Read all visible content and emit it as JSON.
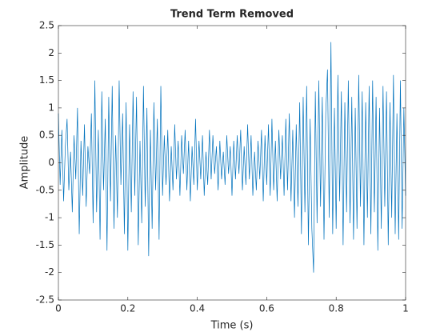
{
  "chart_data": {
    "type": "line",
    "title": "Trend Term Removed",
    "xlabel": "Time (s)",
    "ylabel": "Amplitude",
    "xlim": [
      0,
      1
    ],
    "xticks": [
      0,
      0.2,
      0.4,
      0.6,
      0.8,
      1
    ],
    "ylim": [
      -2.5,
      2.5
    ],
    "yticks": [
      -2.5,
      -2,
      -1.5,
      -1,
      -0.5,
      0,
      0.5,
      1,
      1.5,
      2,
      2.5
    ],
    "color": "#0072bd",
    "x": [
      0,
      0.005,
      0.01,
      0.015,
      0.02,
      0.025,
      0.03,
      0.035,
      0.04,
      0.045,
      0.05,
      0.055,
      0.06,
      0.065,
      0.07,
      0.075,
      0.08,
      0.085,
      0.09,
      0.095,
      0.1,
      0.105,
      0.11,
      0.115,
      0.12,
      0.125,
      0.13,
      0.135,
      0.14,
      0.145,
      0.15,
      0.155,
      0.16,
      0.165,
      0.17,
      0.175,
      0.18,
      0.185,
      0.19,
      0.195,
      0.2,
      0.205,
      0.21,
      0.215,
      0.22,
      0.225,
      0.23,
      0.235,
      0.24,
      0.245,
      0.25,
      0.255,
      0.26,
      0.265,
      0.27,
      0.275,
      0.28,
      0.285,
      0.29,
      0.295,
      0.3,
      0.305,
      0.31,
      0.315,
      0.32,
      0.325,
      0.33,
      0.335,
      0.34,
      0.345,
      0.35,
      0.355,
      0.36,
      0.365,
      0.37,
      0.375,
      0.38,
      0.385,
      0.39,
      0.395,
      0.4,
      0.405,
      0.41,
      0.415,
      0.42,
      0.425,
      0.43,
      0.435,
      0.44,
      0.445,
      0.45,
      0.455,
      0.46,
      0.465,
      0.47,
      0.475,
      0.48,
      0.485,
      0.49,
      0.495,
      0.5,
      0.505,
      0.51,
      0.515,
      0.52,
      0.525,
      0.53,
      0.535,
      0.54,
      0.545,
      0.55,
      0.555,
      0.56,
      0.565,
      0.57,
      0.575,
      0.58,
      0.585,
      0.59,
      0.595,
      0.6,
      0.605,
      0.61,
      0.615,
      0.62,
      0.625,
      0.63,
      0.635,
      0.64,
      0.645,
      0.65,
      0.655,
      0.66,
      0.665,
      0.67,
      0.675,
      0.68,
      0.685,
      0.69,
      0.695,
      0.7,
      0.705,
      0.71,
      0.715,
      0.72,
      0.725,
      0.73,
      0.735,
      0.74,
      0.745,
      0.75,
      0.755,
      0.76,
      0.765,
      0.77,
      0.775,
      0.78,
      0.785,
      0.79,
      0.795,
      0.8,
      0.805,
      0.81,
      0.815,
      0.82,
      0.825,
      0.83,
      0.835,
      0.84,
      0.845,
      0.85,
      0.855,
      0.86,
      0.865,
      0.87,
      0.875,
      0.88,
      0.885,
      0.89,
      0.895,
      0.9,
      0.905,
      0.91,
      0.915,
      0.92,
      0.925,
      0.93,
      0.935,
      0.94,
      0.945,
      0.95,
      0.955,
      0.96,
      0.965,
      0.97,
      0.975,
      0.98,
      0.985,
      0.99,
      0.995,
      1
    ],
    "values": [
      0.9,
      -0.4,
      0.6,
      -0.7,
      0.3,
      0.8,
      -0.5,
      0.2,
      -0.9,
      0.5,
      -0.3,
      1.0,
      -1.3,
      0.4,
      -0.6,
      0.7,
      -0.8,
      0.3,
      -0.2,
      0.9,
      -1.1,
      1.5,
      -0.9,
      0.6,
      -1.4,
      1.3,
      -0.5,
      0.8,
      -1.6,
      1.2,
      -0.7,
      1.4,
      -1.2,
      0.5,
      -1.0,
      1.5,
      -0.4,
      0.9,
      -1.3,
      1.1,
      -1.6,
      0.7,
      -0.9,
      1.3,
      -0.6,
      1.2,
      -1.5,
      0.4,
      -1.1,
      1.4,
      -0.8,
      1.0,
      -1.7,
      0.6,
      -1.2,
      1.1,
      -0.5,
      0.8,
      -1.4,
      1.4,
      -0.6,
      0.5,
      -0.4,
      0.6,
      -0.7,
      0.3,
      -0.5,
      0.7,
      -0.3,
      0.4,
      -0.6,
      0.5,
      -0.2,
      0.6,
      -0.5,
      0.4,
      -0.7,
      0.3,
      -0.4,
      0.8,
      -0.5,
      0.4,
      -0.3,
      0.5,
      -0.6,
      0.2,
      -0.4,
      0.6,
      -0.3,
      0.5,
      -0.2,
      0.3,
      -0.5,
      0.4,
      -0.3,
      0.2,
      -0.4,
      0.5,
      -0.2,
      0.3,
      -0.6,
      0.4,
      -0.3,
      0.5,
      -0.2,
      0.6,
      -0.5,
      0.3,
      -0.4,
      0.7,
      -0.3,
      0.5,
      -0.6,
      0.2,
      -0.5,
      0.4,
      -0.3,
      0.6,
      -0.7,
      0.5,
      -0.4,
      0.7,
      -0.6,
      0.8,
      -0.5,
      0.4,
      -0.7,
      0.6,
      -0.3,
      0.5,
      -0.6,
      0.8,
      -0.5,
      0.9,
      -0.7,
      0.6,
      -1.0,
      0.7,
      -0.8,
      1.1,
      -1.3,
      1.2,
      -0.9,
      1.4,
      -1.5,
      0.8,
      -1.2,
      -2.0,
      1.3,
      -1.1,
      1.5,
      -0.8,
      1.2,
      -1.4,
      0.9,
      1.7,
      -1.0,
      2.2,
      -1.3,
      1.0,
      -1.2,
      1.6,
      -0.7,
      1.3,
      -1.5,
      1.1,
      -0.9,
      1.5,
      -1.1,
      1.2,
      -1.4,
      1.0,
      -1.2,
      1.6,
      -0.8,
      1.3,
      -1.5,
      1.1,
      -1.0,
      1.4,
      -1.3,
      1.5,
      -0.9,
      1.2,
      -1.6,
      1.0,
      -1.2,
      1.4,
      -0.8,
      1.3,
      -1.5,
      1.1,
      -1.0,
      1.6,
      -1.3,
      0.9,
      -1.4,
      1.5,
      -1.2,
      1.0,
      -0.6
    ]
  }
}
